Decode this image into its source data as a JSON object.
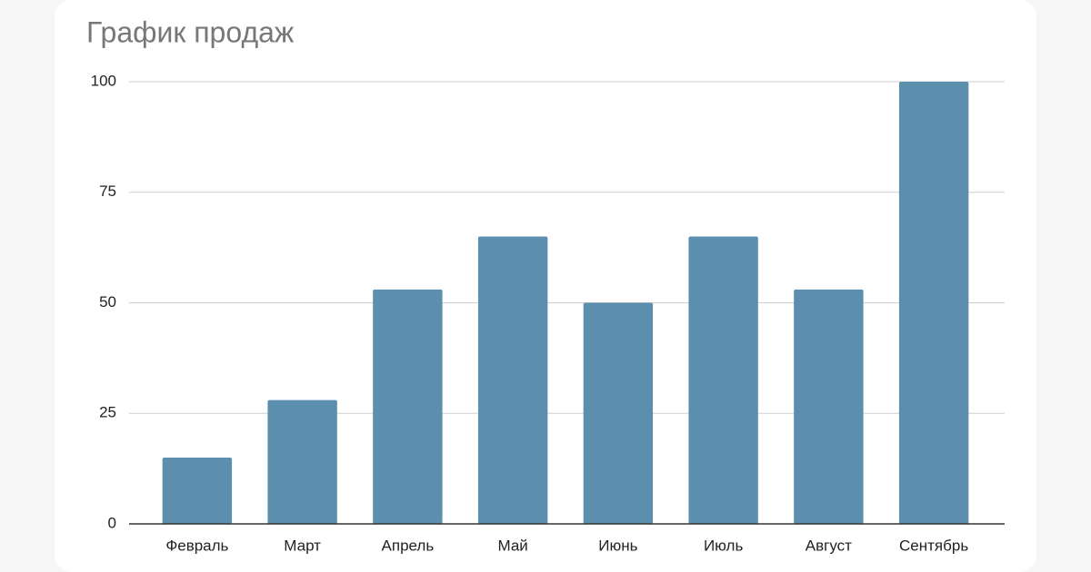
{
  "chart_data": {
    "type": "bar",
    "title": "График продаж",
    "categories": [
      "Февраль",
      "Март",
      "Апрель",
      "Май",
      "Июнь",
      "Июль",
      "Август",
      "Сентябрь"
    ],
    "values": [
      15,
      28,
      53,
      65,
      50,
      65,
      53,
      100
    ],
    "color": "#5b8fad",
    "ylim": [
      0,
      100
    ],
    "yticks": [
      0,
      25,
      50,
      75,
      100
    ],
    "grid": true
  }
}
